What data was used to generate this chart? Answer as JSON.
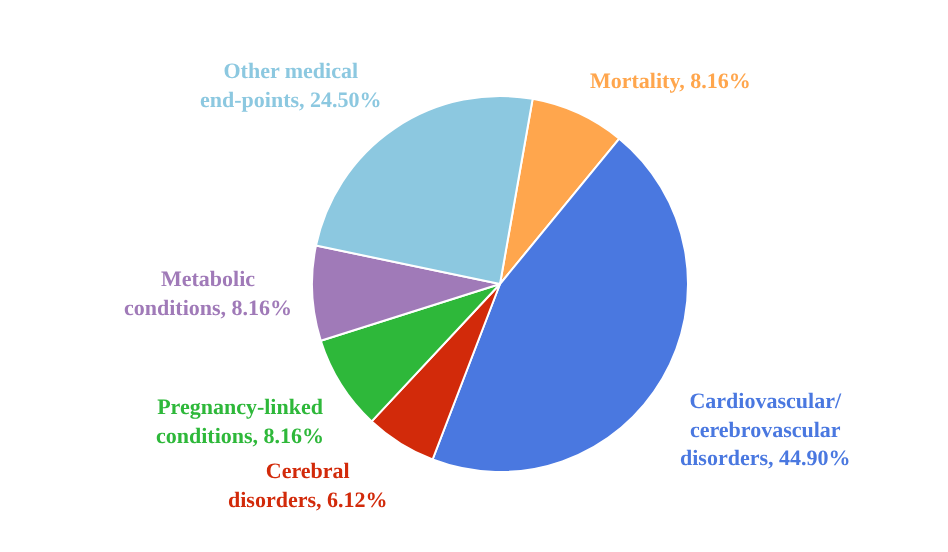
{
  "chart_data": {
    "type": "pie",
    "categories": [
      "Mortality",
      "Cardiovascular/cerebrovascular disorders",
      "Cerebral disorders",
      "Pregnancy-linked conditions",
      "Metabolic conditions",
      "Other medical end-points"
    ],
    "values": [
      8.16,
      44.9,
      6.12,
      8.16,
      8.16,
      24.5
    ],
    "value_labels": [
      "8.16%",
      "44.90%",
      "6.12%",
      "8.16%",
      "8.16%",
      "24.50%"
    ],
    "colors": [
      "#ffa64d",
      "#4a78e0",
      "#d22a0a",
      "#2eb83a",
      "#a07ab8",
      "#8cc8e0"
    ]
  }
}
